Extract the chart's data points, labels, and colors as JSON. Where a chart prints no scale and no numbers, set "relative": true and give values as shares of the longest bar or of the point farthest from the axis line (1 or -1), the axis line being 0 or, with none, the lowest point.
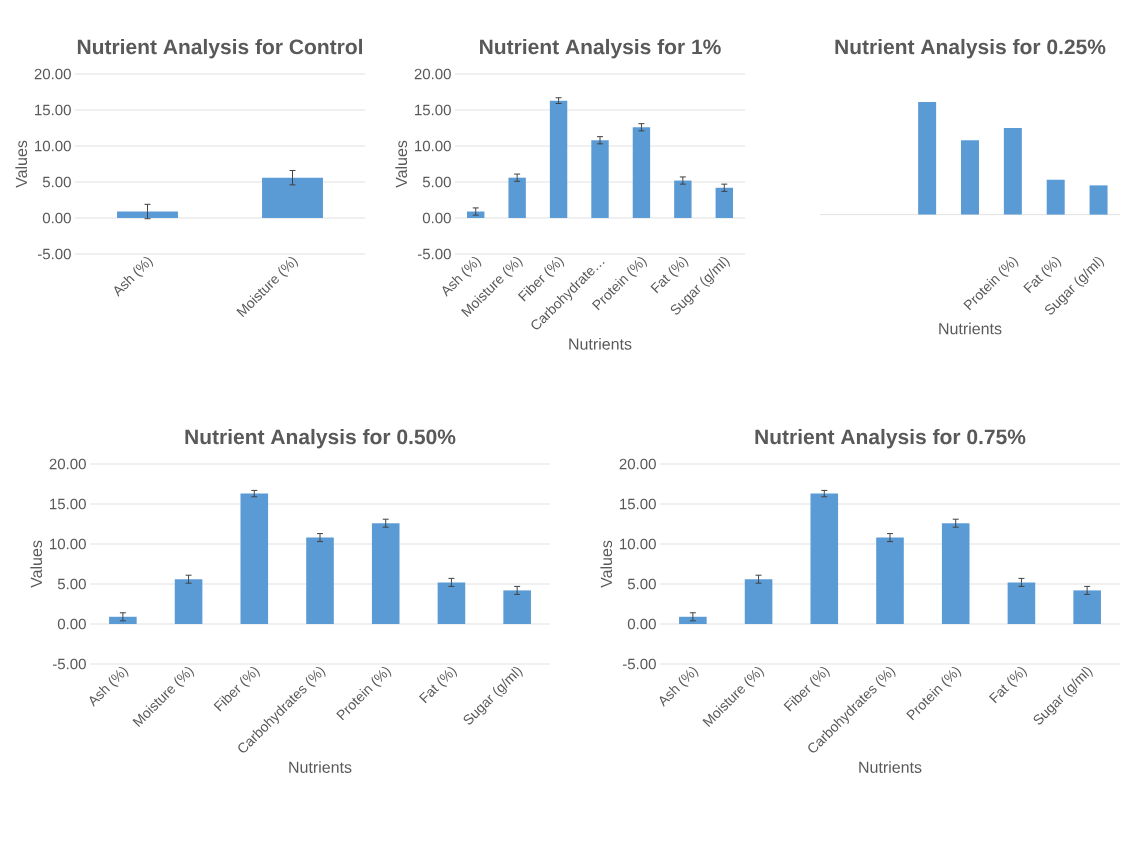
{
  "chart_data": [
    {
      "type": "bar",
      "title": "Nutrient Analysis for Control",
      "ylabel": "Values",
      "categories": [
        "Ash (%)",
        "Moisture (%)"
      ],
      "values": [
        0.9,
        5.6
      ],
      "errors": [
        1.0,
        1.0
      ],
      "color": "#5b9bd5",
      "ylim": [
        -5,
        20
      ],
      "yticks": [
        {
          "value": -5,
          "label": "-5.00"
        },
        {
          "value": 0,
          "label": "0.00"
        },
        {
          "value": 5,
          "label": "5.00"
        },
        {
          "value": 10,
          "label": "10.00"
        },
        {
          "value": 15,
          "label": "15.00"
        },
        {
          "value": 20,
          "label": "20.00"
        }
      ],
      "grid": "y"
    },
    {
      "type": "bar",
      "title": "Nutrient Analysis for 1%",
      "xlabel": "Nutrients",
      "ylabel": "Values",
      "categories": [
        "Ash (%)",
        "Moisture (%)",
        "Fiber (%)",
        "Carbohydrate…",
        "Protein (%)",
        "Fat (%)",
        "Sugar (g/ml)"
      ],
      "values": [
        0.9,
        5.6,
        16.3,
        10.8,
        12.6,
        5.2,
        4.2
      ],
      "errors": [
        0.5,
        0.5,
        0.4,
        0.5,
        0.5,
        0.5,
        0.5
      ],
      "color": "#5b9bd5",
      "ylim": [
        -5,
        20
      ],
      "yticks": [
        {
          "value": -5,
          "label": "-5.00"
        },
        {
          "value": 0,
          "label": "0.00"
        },
        {
          "value": 5,
          "label": "5.00"
        },
        {
          "value": 10,
          "label": "10.00"
        },
        {
          "value": 15,
          "label": "15.00"
        },
        {
          "value": 20,
          "label": "20.00"
        }
      ],
      "grid": "y"
    },
    {
      "type": "bar",
      "title": "Nutrient Analysis for 0.25%",
      "xlabel": "Nutrients",
      "relative": true,
      "categories": [
        null,
        null,
        null,
        null,
        "Protein (%)",
        "Fat (%)",
        "Sugar (g/ml)"
      ],
      "values": [
        null,
        null,
        1,
        0.66,
        0.77,
        0.31,
        0.26
      ],
      "color": "#5b9bd5"
    },
    {
      "type": "bar",
      "title": "Nutrient Analysis for 0.50%",
      "xlabel": "Nutrients",
      "ylabel": "Values",
      "categories": [
        "Ash (%)",
        "Moisture (%)",
        "Fiber (%)",
        "Carbohydrates (%)",
        "Protein (%)",
        "Fat (%)",
        "Sugar (g/ml)"
      ],
      "values": [
        0.9,
        5.6,
        16.3,
        10.8,
        12.6,
        5.2,
        4.2
      ],
      "errors": [
        0.5,
        0.5,
        0.4,
        0.5,
        0.5,
        0.5,
        0.5
      ],
      "color": "#5b9bd5",
      "ylim": [
        -5,
        20
      ],
      "yticks": [
        {
          "value": -5,
          "label": "-5.00"
        },
        {
          "value": 0,
          "label": "0.00"
        },
        {
          "value": 5,
          "label": "5.00"
        },
        {
          "value": 10,
          "label": "10.00"
        },
        {
          "value": 15,
          "label": "15.00"
        },
        {
          "value": 20,
          "label": "20.00"
        }
      ],
      "grid": "y"
    },
    {
      "type": "bar",
      "title": "Nutrient Analysis for 0.75%",
      "xlabel": "Nutrients",
      "ylabel": "Values",
      "categories": [
        "Ash (%)",
        "Moisture (%)",
        "Fiber (%)",
        "Carbohydrates (%)",
        "Protein (%)",
        "Fat (%)",
        "Sugar (g/ml)"
      ],
      "values": [
        0.9,
        5.6,
        16.3,
        10.8,
        12.6,
        5.2,
        4.2
      ],
      "errors": [
        0.5,
        0.5,
        0.4,
        0.5,
        0.5,
        0.5,
        0.5
      ],
      "color": "#5b9bd5",
      "ylim": [
        -5,
        20
      ],
      "yticks": [
        {
          "value": -5,
          "label": "-5.00"
        },
        {
          "value": 0,
          "label": "0.00"
        },
        {
          "value": 5,
          "label": "5.00"
        },
        {
          "value": 10,
          "label": "10.00"
        },
        {
          "value": 15,
          "label": "15.00"
        },
        {
          "value": 20,
          "label": "20.00"
        }
      ],
      "grid": "y"
    }
  ]
}
